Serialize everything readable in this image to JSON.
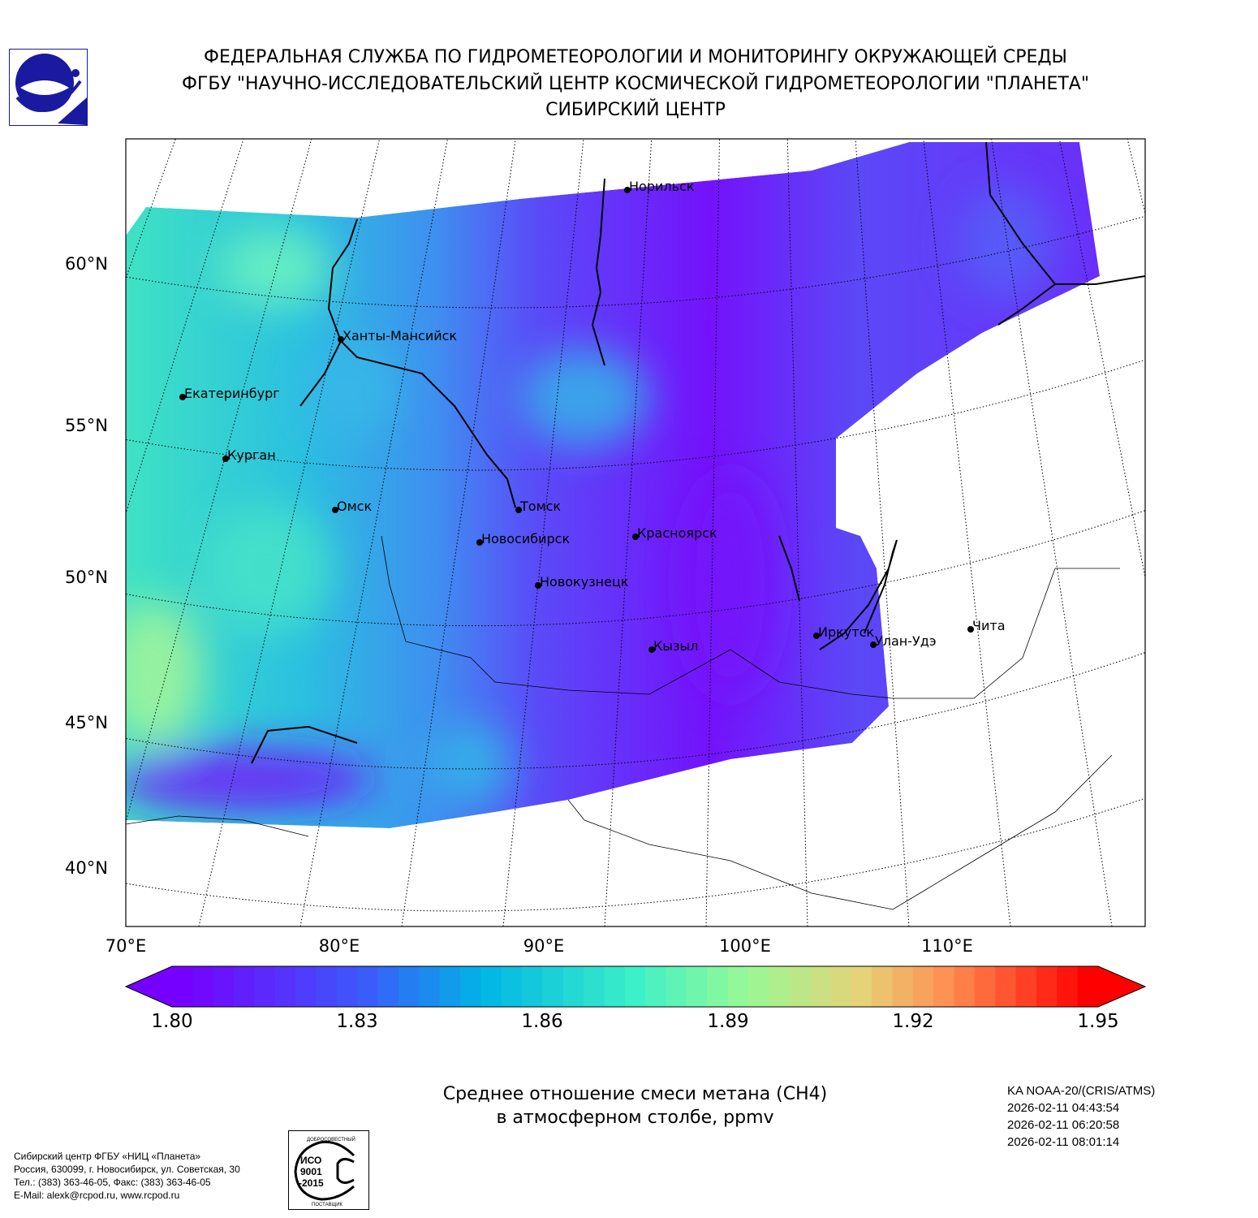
{
  "header": {
    "line1": "ФЕДЕРАЛЬНАЯ СЛУЖБА ПО ГИДРОМЕТЕОРОЛОГИИ И МОНИТОРИНГУ ОКРУЖАЮЩЕЙ СРЕДЫ",
    "line2": "ФГБУ \"НАУЧНО-ИССЛЕДОВАТЕЛЬСКИЙ ЦЕНТР КОСМИЧЕСКОЙ ГИДРОМЕТЕОРОЛОГИИ \"ПЛАНЕТА\"",
    "line3": "СИБИРСКИЙ ЦЕНТР"
  },
  "map": {
    "lat_labels": [
      "60°N",
      "55°N",
      "50°N",
      "45°N",
      "40°N"
    ],
    "lon_labels": [
      "70°E",
      "80°E",
      "90°E",
      "100°E",
      "110°E"
    ],
    "cities": [
      {
        "name": "Норильск"
      },
      {
        "name": "Ханты-Мансийск"
      },
      {
        "name": "Екатеринбург"
      },
      {
        "name": "Курган"
      },
      {
        "name": "Омск"
      },
      {
        "name": "Томск"
      },
      {
        "name": "Новосибирск"
      },
      {
        "name": "Красноярск"
      },
      {
        "name": "Новокузнецк"
      },
      {
        "name": "Кызыл"
      },
      {
        "name": "Иркутск"
      },
      {
        "name": "Улан-Удэ"
      },
      {
        "name": "Чита"
      }
    ]
  },
  "colorbar": {
    "min": 1.8,
    "max": 1.95,
    "ticks": [
      "1.80",
      "1.83",
      "1.86",
      "1.89",
      "1.92",
      "1.95"
    ],
    "extend": "both"
  },
  "title": {
    "line1": "Среднее отношение смеси метана (CH4)",
    "line2": "в атмосферном столбе, ppmv"
  },
  "satellite": {
    "name": "KA NOAA-20/(CRIS/ATMS)",
    "times": [
      "2026-02-11 04:43:54",
      "2026-02-11 06:20:58",
      "2026-02-11 08:01:14"
    ]
  },
  "footer": {
    "lines": [
      "Сибирский центр ФГБУ «НИЦ «Планета»",
      "Россия, 630099, г. Новосибирск, ул. Советская, 30",
      "Тел.: (383) 363-46-05, Факс: (383) 363-46-05",
      "E-Mail: alexk@rcpod.ru, www.rcpod.ru"
    ]
  },
  "iso_badge": {
    "top": "ДОБРОСОВЕСТНЫЙ",
    "mid": "ИСО 9001 -2015",
    "bottom": "ПОСТАВЩИК"
  }
}
